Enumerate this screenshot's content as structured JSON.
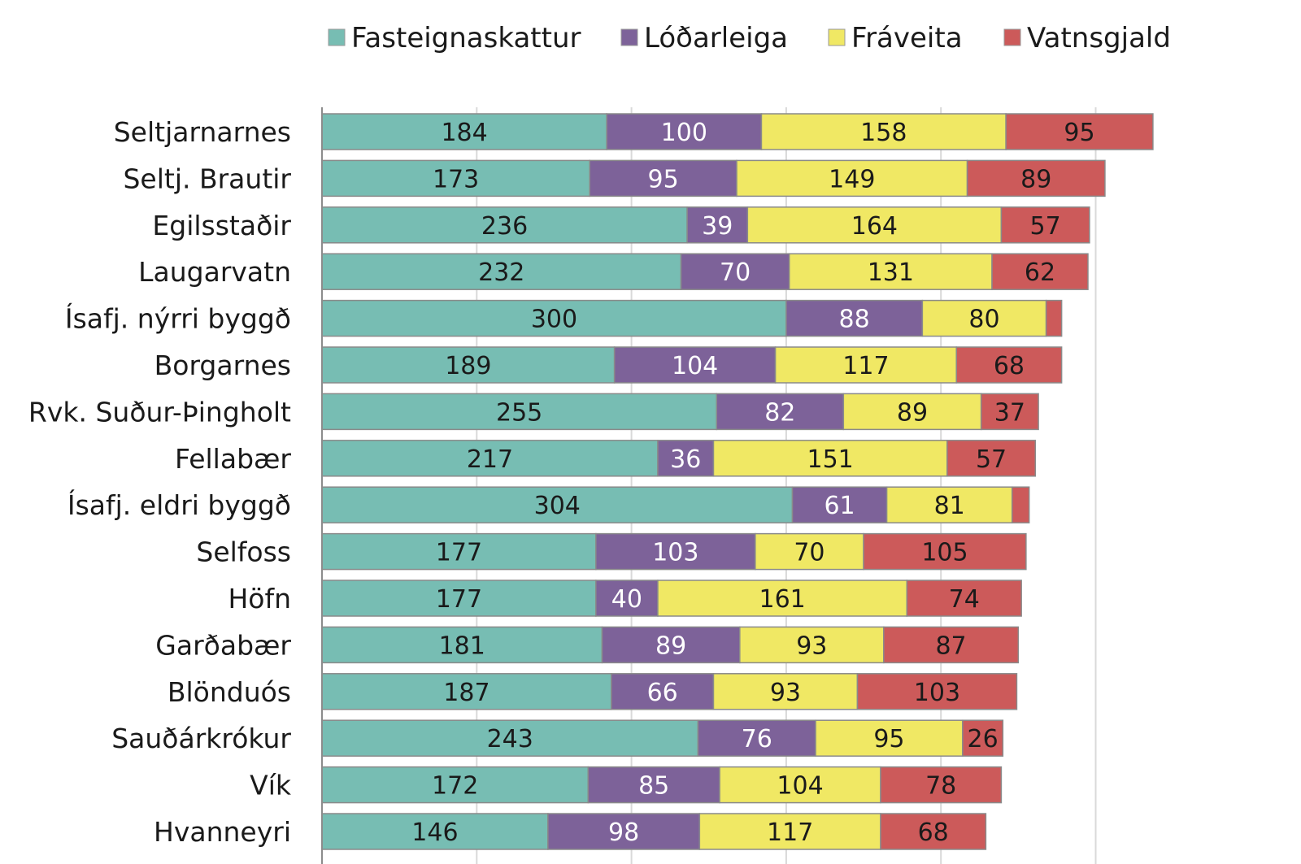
{
  "chart_data": {
    "type": "bar",
    "orientation": "horizontal",
    "stacked": true,
    "title": "",
    "xlabel": "",
    "ylabel": "",
    "xlim": [
      0,
      537
    ],
    "grid": true,
    "legend_position": "top",
    "categories": [
      "Seltjarnarnes",
      "Seltj. Brautir",
      "Egilsstaðir",
      "Laugarvatn",
      "Ísafj. nýrri byggð",
      "Borgarnes",
      "Rvk. Suður-Þingholt",
      "Fellabær",
      "Ísafj. eldri byggð",
      "Selfoss",
      "Höfn",
      "Garðabær",
      "Blönduós",
      "Sauðárkrókur",
      "Vík",
      "Hvanneyri"
    ],
    "series": [
      {
        "name": "Fasteignaskattur",
        "color": "#77bdb3",
        "label_color": "#1a1a1a",
        "values": [
          184,
          173,
          236,
          232,
          300,
          189,
          255,
          217,
          304,
          177,
          177,
          181,
          187,
          243,
          172,
          146
        ],
        "labels": [
          "184",
          "173",
          "236",
          "232",
          "300",
          "189",
          "255",
          "217",
          "304",
          "177",
          "177",
          "181",
          "187",
          "243",
          "172",
          "146"
        ]
      },
      {
        "name": "Lóðarleiga",
        "color": "#7d6299",
        "label_color": "#ffffff",
        "values": [
          100,
          95,
          39,
          70,
          88,
          104,
          82,
          36,
          61,
          103,
          40,
          89,
          66,
          76,
          85,
          98
        ],
        "labels": [
          "100",
          "95",
          "39",
          "70",
          "88",
          "104",
          "82",
          "36",
          "61",
          "103",
          "40",
          "89",
          "66",
          "76",
          "85",
          "98"
        ]
      },
      {
        "name": "Fráveita",
        "color": "#f0e864",
        "label_color": "#1a1a1a",
        "values": [
          158,
          149,
          164,
          131,
          80,
          117,
          89,
          151,
          81,
          70,
          161,
          93,
          93,
          95,
          104,
          117
        ],
        "labels": [
          "158",
          "149",
          "164",
          "131",
          "80",
          "117",
          "89",
          "151",
          "81",
          "70",
          "161",
          "93",
          "93",
          "95",
          "104",
          "117"
        ]
      },
      {
        "name": "Vatnsgjald",
        "color": "#cc5a5a",
        "label_color": "#1a1a1a",
        "values": [
          95,
          89,
          57,
          62,
          10,
          68,
          37,
          57,
          11,
          105,
          74,
          87,
          103,
          26,
          78,
          68
        ],
        "labels": [
          "95",
          "89",
          "57",
          "62",
          "",
          "68",
          "37",
          "57",
          "",
          "105",
          "74",
          "87",
          "103",
          "26",
          "78",
          "68"
        ]
      }
    ]
  }
}
